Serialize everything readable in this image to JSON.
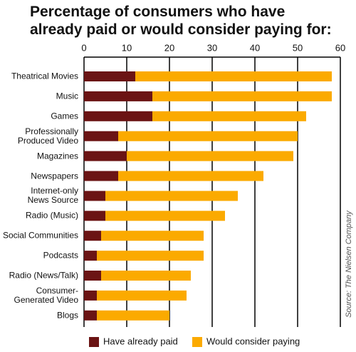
{
  "chart_data": {
    "type": "bar",
    "orientation": "horizontal",
    "stacked": true,
    "title": "Percentage of consumers who have\nalready paid or would consider paying for:",
    "source": "Source: The Nielsen Company",
    "categories": [
      "Theatrical Movies",
      "Music",
      "Games",
      "Professionally\nProduced Video",
      "Magazines",
      "Newspapers",
      "Internet-only\nNews Source",
      "Radio (Music)",
      "Social Communities",
      "Podcasts",
      "Radio (News/Talk)",
      "Consumer-\nGenerated Video",
      "Blogs"
    ],
    "series": [
      {
        "name": "Have already paid",
        "color": "#6b1414",
        "values": [
          12,
          16,
          16,
          8,
          10,
          8,
          5,
          5,
          4,
          3,
          4,
          3,
          3
        ]
      },
      {
        "name": "Would consider paying",
        "color": "#fbaa00",
        "values": [
          46,
          42,
          36,
          42,
          39,
          34,
          31,
          28,
          24,
          25,
          21,
          21,
          17
        ]
      }
    ],
    "xlim": [
      0,
      60
    ],
    "xticks": [
      0,
      10,
      20,
      30,
      40,
      50,
      60
    ],
    "grid": true,
    "legend": "bottom"
  }
}
